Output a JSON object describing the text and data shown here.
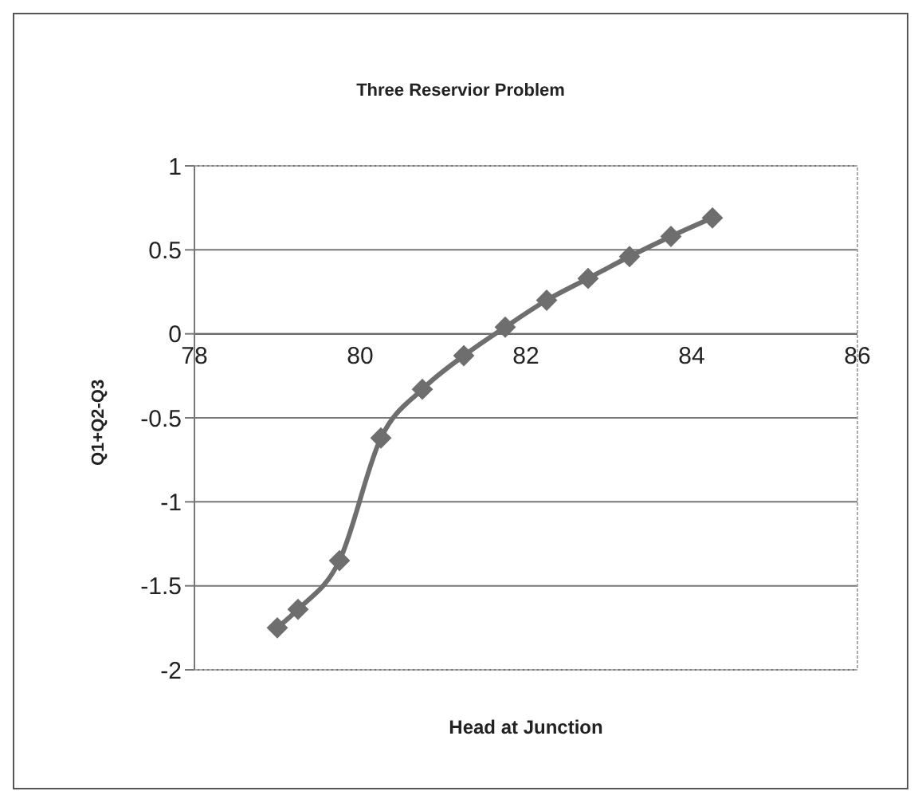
{
  "chart_data": {
    "type": "line",
    "title": "Three Reservior Problem",
    "xlabel": "Head at Junction",
    "ylabel": "Q1+Q2-Q3",
    "x": [
      79.0,
      79.25,
      79.75,
      80.25,
      80.75,
      81.25,
      81.75,
      82.25,
      82.75,
      83.25,
      83.75,
      84.25
    ],
    "series": [
      {
        "color": "#6e6e6e",
        "values": [
          -1.75,
          -1.64,
          -1.35,
          -0.62,
          -0.33,
          -0.13,
          0.04,
          0.2,
          0.33,
          0.46,
          0.58,
          0.69
        ]
      }
    ],
    "xlim": [
      78,
      86
    ],
    "xticks": [
      78,
      80,
      82,
      84,
      86
    ],
    "ylim": [
      -2,
      1
    ],
    "yticks": [
      -2,
      -1.5,
      -1,
      -0.5,
      0,
      0.5,
      1
    ],
    "grid": "y",
    "marker": "diamond",
    "line_style": "solid",
    "legend": false
  }
}
